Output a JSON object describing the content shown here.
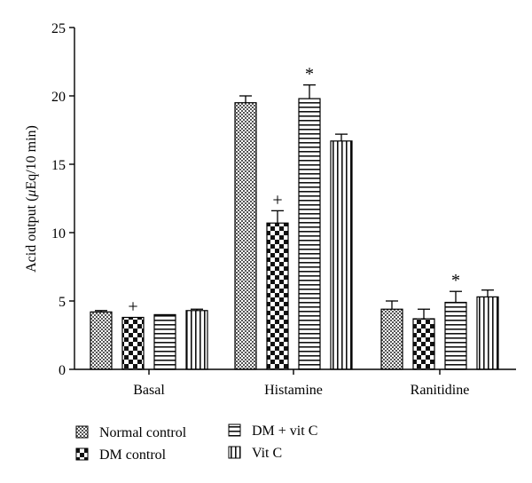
{
  "chart_data": {
    "type": "bar",
    "title": "",
    "xlabel": "",
    "ylabel_prefix": "Acid output (",
    "ylabel_mu": "μ",
    "ylabel_suffix": "Eq/10 min)",
    "ylim": [
      0,
      25
    ],
    "yticks": [
      "0",
      "5",
      "10",
      "15",
      "20",
      "25"
    ],
    "categories": [
      "Basal",
      "Histamine",
      "Ranitidine"
    ],
    "series": [
      {
        "name": "Normal control",
        "pattern": "checker-fine",
        "values": [
          4.2,
          19.5,
          4.4
        ],
        "errors": [
          0.1,
          0.5,
          0.6
        ]
      },
      {
        "name": "DM control",
        "pattern": "checker-coarse",
        "values": [
          3.8,
          10.7,
          3.7
        ],
        "errors": [
          0.0,
          0.9,
          0.7
        ]
      },
      {
        "name": "DM + vit C",
        "pattern": "horizontal-stripes",
        "values": [
          4.0,
          19.8,
          4.9
        ],
        "errors": [
          0.0,
          1.0,
          0.8
        ]
      },
      {
        "name": "Vit C",
        "pattern": "vertical-stripes",
        "values": [
          4.3,
          16.7,
          5.3
        ],
        "errors": [
          0.1,
          0.5,
          0.5
        ]
      }
    ],
    "annotations": [
      {
        "series": 1,
        "category": 0,
        "symbol": "+"
      },
      {
        "series": 1,
        "category": 1,
        "symbol": "+"
      },
      {
        "series": 2,
        "category": 1,
        "symbol": "*"
      },
      {
        "series": 2,
        "category": 2,
        "symbol": "*"
      }
    ],
    "legend": {
      "placement": "bottom",
      "items": [
        "Normal control",
        "DM control",
        "DM + vit C",
        "Vit C"
      ]
    }
  }
}
